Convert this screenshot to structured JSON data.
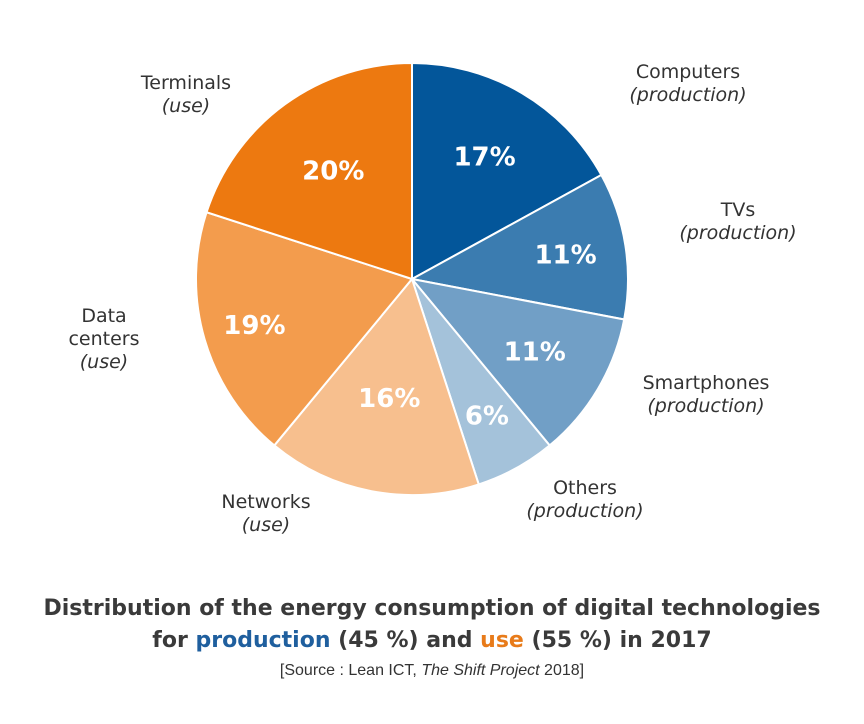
{
  "chart_data": {
    "type": "pie",
    "slices": [
      {
        "label": "17%",
        "value": 17,
        "name": "Computers",
        "tag": "(production)",
        "color": "#03569a"
      },
      {
        "label": "11%",
        "value": 11,
        "name": "TVs",
        "tag": "(production)",
        "color": "#3b7cb0"
      },
      {
        "label": "11%",
        "value": 11,
        "name": "Smartphones",
        "tag": "(production)",
        "color": "#719fc6"
      },
      {
        "label": "6%",
        "value": 6,
        "name": "Others",
        "tag": "(production)",
        "color": "#a4c2da"
      },
      {
        "label": "16%",
        "value": 16,
        "name": "Networks",
        "tag": "(use)",
        "color": "#f7bf8e"
      },
      {
        "label": "19%",
        "value": 19,
        "name": "Data centers",
        "tag": "(use)",
        "color": "#f39c4d"
      },
      {
        "label": "20%",
        "value": 20,
        "name": "Terminals",
        "tag": "(use)",
        "color": "#ed7910"
      }
    ],
    "start": "12 o'clock",
    "direction": "clockwise",
    "legend": "none"
  },
  "caption": {
    "line1": "Distribution of the energy consumption of digital technologies",
    "line2_prefix": "for ",
    "line2_production": "production",
    "line2_mid": " (45 %) and ",
    "line2_use": "use",
    "line2_suffix": " (55 %) in 2017",
    "source_prefix": "[Source : Lean ICT, ",
    "source_italic": "The Shift Project",
    "source_suffix": " 2018]"
  }
}
